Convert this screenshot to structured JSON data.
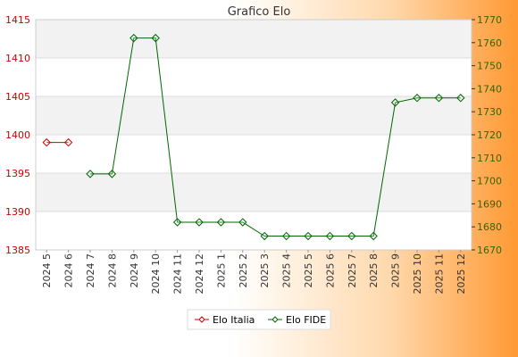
{
  "chart_data": {
    "type": "line",
    "title": "Grafico Elo",
    "categories": [
      "2024 5",
      "2024 6",
      "2024 7",
      "2024 8",
      "2024 9",
      "2024 10",
      "2024 11",
      "2024 12",
      "2025 1",
      "2025 2",
      "2025 3",
      "2025 4",
      "2025 5",
      "2025 6",
      "2025 7",
      "2025 8",
      "2025 9",
      "2025 10",
      "2025 11",
      "2025 12"
    ],
    "left_axis": {
      "ylim": [
        1385,
        1415
      ],
      "ticks": [
        1385,
        1390,
        1395,
        1400,
        1405,
        1410,
        1415
      ],
      "color": "#cc0000"
    },
    "right_axis": {
      "ylim": [
        1670,
        1770
      ],
      "ticks": [
        1670,
        1680,
        1690,
        1700,
        1710,
        1720,
        1730,
        1740,
        1750,
        1760,
        1770
      ],
      "color": "#336600"
    },
    "series": [
      {
        "name": "Elo Italia",
        "axis": "left",
        "color": "#cc0000",
        "values": [
          1399,
          1399,
          null,
          null,
          null,
          null,
          null,
          null,
          null,
          null,
          null,
          null,
          null,
          null,
          null,
          null,
          null,
          null,
          null,
          null
        ]
      },
      {
        "name": "Elo FIDE",
        "axis": "right",
        "color": "#006600",
        "values": [
          null,
          null,
          1703,
          1703,
          1762,
          1762,
          1682,
          1682,
          1682,
          1682,
          1676,
          1676,
          1676,
          1676,
          1676,
          1676,
          1734,
          1736,
          1736,
          1736
        ]
      }
    ],
    "grid": true,
    "legend_position": "bottom"
  }
}
